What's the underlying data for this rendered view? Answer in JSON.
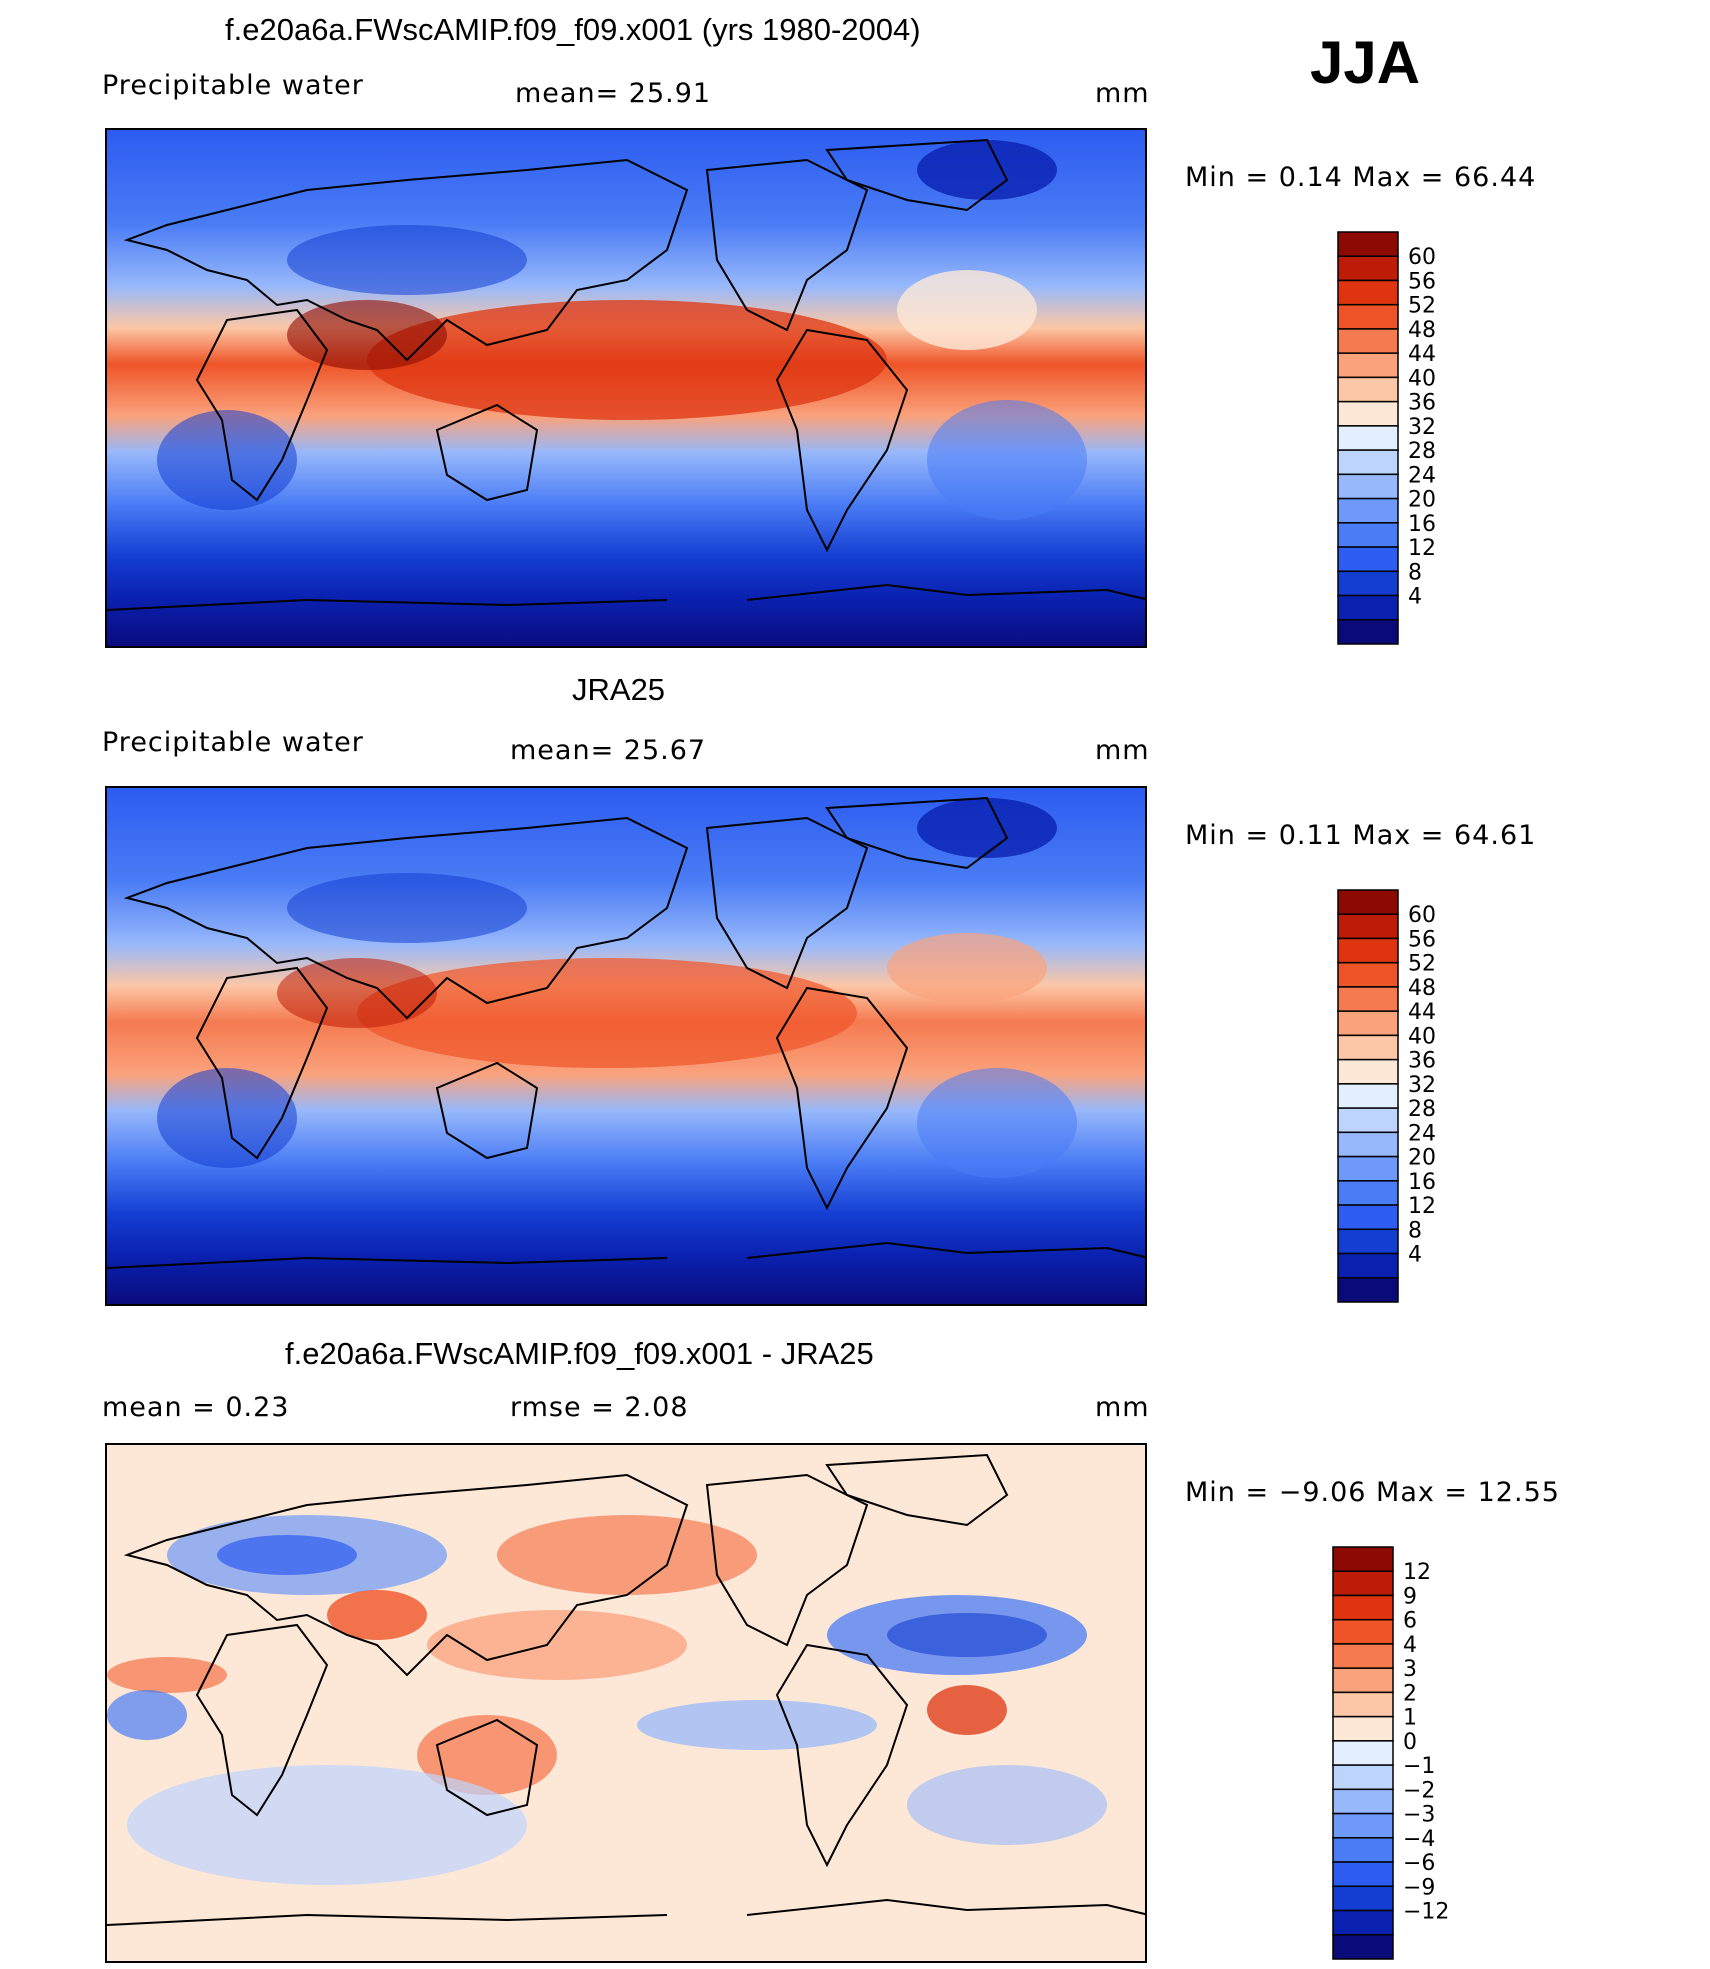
{
  "season": "JJA",
  "colors": {
    "scale": [
      "#0a0a78",
      "#0a21b0",
      "#143ed2",
      "#2c5cf0",
      "#4a7cf5",
      "#6e99f8",
      "#97b8fb",
      "#bdd4fd",
      "#e3eefe",
      "#fde8d8",
      "#fcc7a6",
      "#faa27c",
      "#f57a50",
      "#ef5428",
      "#de3410",
      "#bd1c06",
      "#8c0a02"
    ]
  },
  "panels": [
    {
      "title": "f.e20a6a.FWscAMIP.f09_f09.x001 (yrs 1980-2004)",
      "left_text": "Precipitable  water",
      "stat_text": "mean=   25.91",
      "unit": "mm",
      "minmax": "Min  =     0.14  Max  =     66.44",
      "levels": [
        "60",
        "56",
        "52",
        "48",
        "44",
        "40",
        "36",
        "32",
        "28",
        "24",
        "20",
        "16",
        "12",
        "8",
        "4"
      ]
    },
    {
      "title": "JRA25",
      "left_text": "Precipitable  water",
      "stat_text": "mean=   25.67",
      "unit": "mm",
      "minmax": "Min  =     0.11  Max  =     64.61",
      "levels": [
        "60",
        "56",
        "52",
        "48",
        "44",
        "40",
        "36",
        "32",
        "28",
        "24",
        "20",
        "16",
        "12",
        "8",
        "4"
      ]
    },
    {
      "title": "f.e20a6a.FWscAMIP.f09_f09.x001 - JRA25",
      "left_text": "mean  =      0.23",
      "stat_text": "rmse  =      2.08",
      "unit": "mm",
      "minmax": "Min  =   −9.06  Max  =     12.55",
      "levels": [
        "12",
        "9",
        "6",
        "4",
        "3",
        "2",
        "1",
        "0",
        "−1",
        "−2",
        "−3",
        "−4",
        "−6",
        "−9",
        "−12"
      ]
    }
  ],
  "chart_data": [
    {
      "type": "heatmap",
      "title": "f.e20a6a.FWscAMIP.f09_f09.x001 (yrs 1980-2004)",
      "variable": "Precipitable water",
      "units": "mm",
      "mean": 25.91,
      "min": 0.14,
      "max": 66.44,
      "contour_levels": [
        4,
        8,
        12,
        16,
        20,
        24,
        28,
        32,
        36,
        40,
        44,
        48,
        52,
        56,
        60
      ]
    },
    {
      "type": "heatmap",
      "title": "JRA25",
      "variable": "Precipitable water",
      "units": "mm",
      "mean": 25.67,
      "min": 0.11,
      "max": 64.61,
      "contour_levels": [
        4,
        8,
        12,
        16,
        20,
        24,
        28,
        32,
        36,
        40,
        44,
        48,
        52,
        56,
        60
      ]
    },
    {
      "type": "heatmap",
      "title": "f.e20a6a.FWscAMIP.f09_f09.x001 - JRA25",
      "units": "mm",
      "mean": 0.23,
      "rmse": 2.08,
      "min": -9.06,
      "max": 12.55,
      "contour_levels": [
        -12,
        -9,
        -6,
        -4,
        -3,
        -2,
        -1,
        0,
        1,
        2,
        3,
        4,
        6,
        9,
        12
      ]
    }
  ]
}
